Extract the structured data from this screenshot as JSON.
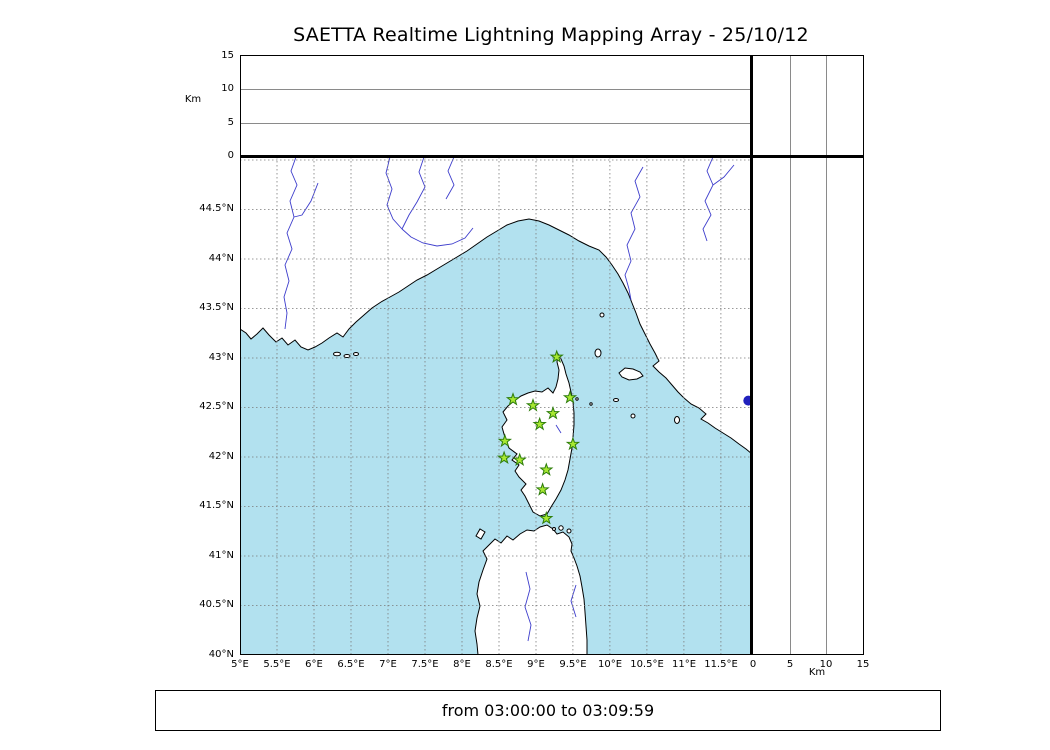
{
  "title": "SAETTA Realtime Lightning Mapping Array - 25/10/12",
  "time_range": "from 03:00:00 to 03:09:59",
  "colors": {
    "sea": "#b2e1ef",
    "land": "#ffffff",
    "coastline": "#000000",
    "river": "#3d3dcc",
    "grid": "#7a7a7a",
    "panel_grid": "#8a8a8a",
    "station_fill": "#a8e832",
    "station_edge": "#2d7d0a",
    "event_dot": "#2121bd"
  },
  "alt_axis": {
    "unit": "Km",
    "range": [
      0,
      15
    ],
    "ticks": [
      {
        "v": 0,
        "label": "0"
      },
      {
        "v": 5,
        "label": "5"
      },
      {
        "v": 10,
        "label": "10"
      },
      {
        "v": 15,
        "label": "15"
      }
    ],
    "gridlines": [
      5,
      10
    ]
  },
  "map": {
    "lon_range": [
      5,
      11.92
    ],
    "lat_range": [
      40,
      45.03
    ],
    "lon_ticks": [
      {
        "v": 5,
        "label": "5°E"
      },
      {
        "v": 5.5,
        "label": "5.5°E"
      },
      {
        "v": 6,
        "label": "6°E"
      },
      {
        "v": 6.5,
        "label": "6.5°E"
      },
      {
        "v": 7,
        "label": "7°E"
      },
      {
        "v": 7.5,
        "label": "7.5°E"
      },
      {
        "v": 8,
        "label": "8°E"
      },
      {
        "v": 8.5,
        "label": "8.5°E"
      },
      {
        "v": 9,
        "label": "9°E"
      },
      {
        "v": 9.5,
        "label": "9.5°E"
      },
      {
        "v": 10,
        "label": "10°E"
      },
      {
        "v": 10.5,
        "label": "10.5°E"
      },
      {
        "v": 11,
        "label": "11°E"
      },
      {
        "v": 11.5,
        "label": "11.5°E"
      }
    ],
    "lat_ticks": [
      {
        "v": 44.5,
        "label": "44.5°N"
      },
      {
        "v": 44,
        "label": "44°N"
      },
      {
        "v": 43.5,
        "label": "43.5°N"
      },
      {
        "v": 43,
        "label": "43°N"
      },
      {
        "v": 42.5,
        "label": "42.5°N"
      },
      {
        "v": 42,
        "label": "42°N"
      },
      {
        "v": 41.5,
        "label": "41.5°N"
      },
      {
        "v": 41,
        "label": "41°N"
      },
      {
        "v": 40.5,
        "label": "40.5°N"
      },
      {
        "v": 40,
        "label": "40°N"
      }
    ],
    "lon_gridlines": [
      5.5,
      6,
      6.5,
      7,
      7.5,
      8,
      8.5,
      9,
      9.5,
      10,
      10.5,
      11,
      11.5
    ],
    "lat_gridlines": [
      45,
      44.5,
      44,
      43.5,
      43,
      42.5,
      42,
      41.5,
      41,
      40.5
    ]
  },
  "stations": [
    {
      "lon": 9.28,
      "lat": 43.01
    },
    {
      "lon": 8.69,
      "lat": 42.58
    },
    {
      "lon": 8.96,
      "lat": 42.52
    },
    {
      "lon": 9.46,
      "lat": 42.6
    },
    {
      "lon": 9.23,
      "lat": 42.44
    },
    {
      "lon": 9.05,
      "lat": 42.33
    },
    {
      "lon": 8.58,
      "lat": 42.16
    },
    {
      "lon": 9.5,
      "lat": 42.13
    },
    {
      "lon": 8.57,
      "lat": 41.99
    },
    {
      "lon": 8.78,
      "lat": 41.97
    },
    {
      "lon": 9.14,
      "lat": 41.87
    },
    {
      "lon": 9.09,
      "lat": 41.67
    },
    {
      "lon": 9.14,
      "lat": 41.38
    }
  ],
  "event_dot": {
    "lon": 11.87,
    "lat": 42.57
  }
}
